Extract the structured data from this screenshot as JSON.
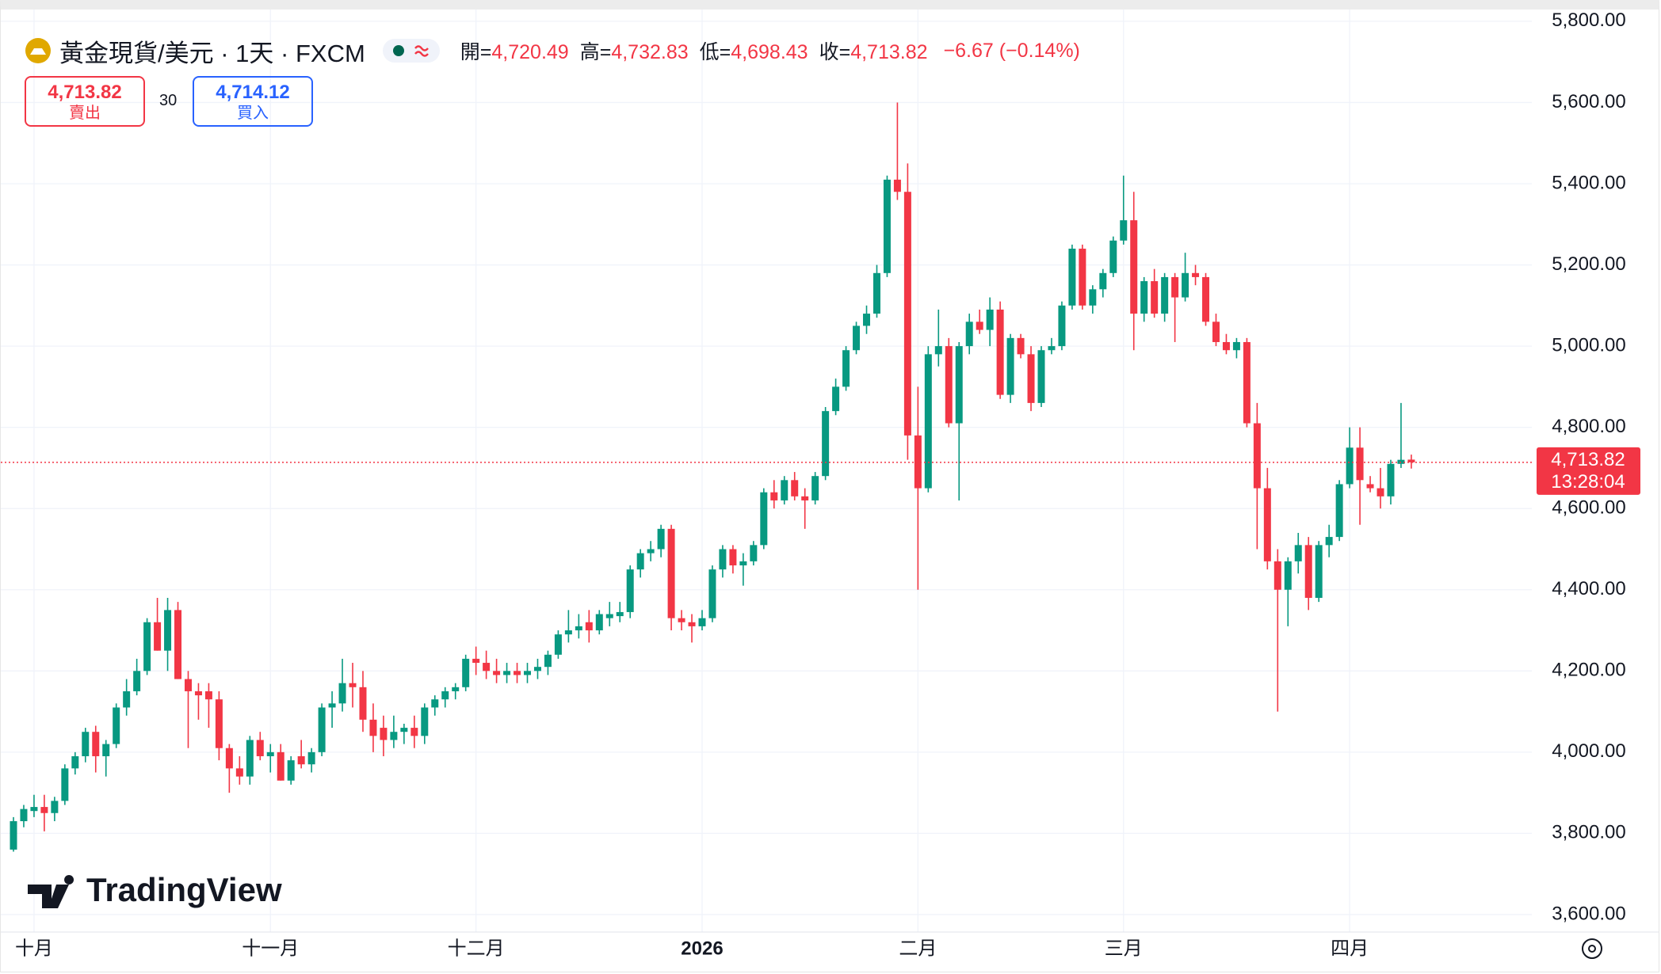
{
  "chart_data": {
    "type": "candlestick",
    "header": {
      "title": "黃金現貨/美元 · 1天 · FXCM",
      "ohlc": [
        {
          "label": "開=",
          "value": "4,720.49"
        },
        {
          "label": "高=",
          "value": "4,732.83"
        },
        {
          "label": "低=",
          "value": "4,698.43"
        },
        {
          "label": "收=",
          "value": "4,713.82"
        }
      ],
      "change": "−6.67 (−0.14%)"
    },
    "sell": {
      "price": "4,713.82",
      "label": "賣出"
    },
    "spread": "30",
    "buy": {
      "price": "4,714.12",
      "label": "買入"
    },
    "last_price": {
      "value": 4713.82,
      "label": "4,713.82"
    },
    "countdown": "13:28:04",
    "watermark": "TradingView",
    "up_color": "#089981",
    "down_color": "#f23645",
    "grid": true,
    "ylim": [
      3557,
      5831
    ],
    "yticks": [
      {
        "value": 3600,
        "label": "3,600.00"
      },
      {
        "value": 3800,
        "label": "3,800.00"
      },
      {
        "value": 4000,
        "label": "4,000.00"
      },
      {
        "value": 4200,
        "label": "4,200.00"
      },
      {
        "value": 4400,
        "label": "4,400.00"
      },
      {
        "value": 4600,
        "label": "4,600.00"
      },
      {
        "value": 4800,
        "label": "4,800.00"
      },
      {
        "value": 5000,
        "label": "5,000.00"
      },
      {
        "value": 5200,
        "label": "5,200.00"
      },
      {
        "value": 5400,
        "label": "5,400.00"
      },
      {
        "value": 5600,
        "label": "5,600.00"
      },
      {
        "value": 5800,
        "label": "5,800.00"
      }
    ],
    "categories": [
      null,
      null,
      "十月",
      null,
      null,
      null,
      null,
      null,
      null,
      null,
      null,
      null,
      null,
      null,
      null,
      null,
      null,
      null,
      null,
      null,
      null,
      null,
      null,
      null,
      null,
      "十一月",
      null,
      null,
      null,
      null,
      null,
      null,
      null,
      null,
      null,
      null,
      null,
      null,
      null,
      null,
      null,
      null,
      null,
      null,
      null,
      "十二月",
      null,
      null,
      null,
      null,
      null,
      null,
      null,
      null,
      null,
      null,
      null,
      null,
      null,
      null,
      null,
      null,
      null,
      null,
      null,
      null,
      null,
      "2026",
      null,
      null,
      null,
      null,
      null,
      null,
      null,
      null,
      null,
      null,
      null,
      null,
      null,
      null,
      null,
      null,
      null,
      null,
      null,
      null,
      "二月",
      null,
      null,
      null,
      null,
      null,
      null,
      null,
      null,
      null,
      null,
      null,
      null,
      null,
      null,
      null,
      null,
      null,
      null,
      null,
      "三月",
      null,
      null,
      null,
      null,
      null,
      null,
      null,
      null,
      null,
      null,
      null,
      null,
      null,
      null,
      null,
      null,
      null,
      null,
      null,
      null,
      null,
      "四月",
      null,
      null,
      null,
      null,
      null,
      null
    ],
    "open": [
      3760,
      3830,
      3855,
      3865,
      3850,
      3880,
      3960,
      3990,
      4050,
      3990,
      4020,
      4110,
      4150,
      4200,
      4320,
      4250,
      4350,
      4180,
      4150,
      4150,
      4130,
      4010,
      3960,
      3940,
      4030,
      3990,
      4000,
      3930,
      3990,
      3970,
      4000,
      4110,
      4120,
      4170,
      4160,
      4080,
      4060,
      4030,
      4050,
      4060,
      4040,
      4110,
      4130,
      4150,
      4160,
      4230,
      4220,
      4200,
      4190,
      4200,
      4190,
      4200,
      4210,
      4240,
      4290,
      4300,
      4320,
      4300,
      4330,
      4335,
      4345,
      4450,
      4490,
      4500,
      4550,
      4330,
      4320,
      4310,
      4330,
      4450,
      4500,
      4460,
      4470,
      4510,
      4640,
      4620,
      4670,
      4630,
      4620,
      4680,
      4840,
      4900,
      4990,
      5050,
      5080,
      5180,
      5410,
      5380,
      4780,
      4650,
      4980,
      5000,
      4810,
      5000,
      5060,
      5040,
      5090,
      4880,
      5020,
      4980,
      4860,
      4990,
      5000,
      5100,
      5240,
      5100,
      5140,
      5180,
      5260,
      5310,
      5080,
      5160,
      5080,
      5170,
      5120,
      5180,
      5170,
      5060,
      5010,
      4990,
      5010,
      4810,
      4650,
      4470,
      4400,
      4470,
      4510,
      4380,
      4510,
      4530,
      4660,
      4750,
      4660,
      4650,
      4630,
      4710,
      4720.49
    ],
    "high": [
      3840,
      3870,
      3895,
      3895,
      3890,
      3970,
      4000,
      4060,
      4065,
      4030,
      4120,
      4180,
      4230,
      4330,
      4380,
      4380,
      4370,
      4200,
      4170,
      4170,
      4150,
      4020,
      3990,
      4040,
      4050,
      4020,
      4020,
      3990,
      4030,
      4010,
      4120,
      4150,
      4230,
      4220,
      4200,
      4120,
      4090,
      4090,
      4070,
      4090,
      4120,
      4140,
      4160,
      4170,
      4240,
      4260,
      4250,
      4230,
      4220,
      4220,
      4220,
      4230,
      4250,
      4300,
      4350,
      4340,
      4350,
      4350,
      4370,
      4370,
      4460,
      4500,
      4520,
      4560,
      4560,
      4350,
      4340,
      4350,
      4460,
      4510,
      4510,
      4490,
      4520,
      4650,
      4670,
      4680,
      4690,
      4650,
      4690,
      4850,
      4920,
      5000,
      5060,
      5100,
      5200,
      5420,
      5600,
      5450,
      4900,
      5000,
      5090,
      5020,
      5010,
      5080,
      5090,
      5120,
      5110,
      5030,
      5030,
      5000,
      5000,
      5020,
      5110,
      5250,
      5250,
      5150,
      5190,
      5270,
      5420,
      5380,
      5170,
      5190,
      5180,
      5180,
      5230,
      5200,
      5180,
      5080,
      5030,
      5020,
      5020,
      4860,
      4700,
      4500,
      4480,
      4540,
      4530,
      4520,
      4560,
      4670,
      4800,
      4800,
      4680,
      4700,
      4720,
      4860,
      4732.83
    ],
    "low": [
      3755,
      3815,
      3840,
      3805,
      3830,
      3870,
      3945,
      3975,
      3950,
      3940,
      4010,
      4090,
      4140,
      4190,
      4250,
      4200,
      4180,
      4010,
      4080,
      4060,
      3980,
      3900,
      3920,
      3920,
      3980,
      3950,
      3930,
      3920,
      3960,
      3950,
      3990,
      4060,
      4100,
      4110,
      4050,
      4000,
      3990,
      4010,
      4020,
      4010,
      4020,
      4090,
      4110,
      4130,
      4150,
      4190,
      4180,
      4170,
      4170,
      4170,
      4170,
      4180,
      4190,
      4230,
      4270,
      4280,
      4270,
      4290,
      4310,
      4320,
      4330,
      4430,
      4470,
      4480,
      4300,
      4300,
      4270,
      4300,
      4320,
      4430,
      4440,
      4410,
      4460,
      4500,
      4600,
      4610,
      4620,
      4550,
      4610,
      4670,
      4830,
      4890,
      4980,
      5030,
      5070,
      5170,
      5360,
      4720,
      4400,
      4640,
      4950,
      4800,
      4620,
      4980,
      5030,
      5000,
      4870,
      4860,
      4970,
      4840,
      4850,
      4980,
      4990,
      5090,
      5090,
      5080,
      5120,
      5170,
      5250,
      4990,
      5060,
      5070,
      5060,
      5010,
      5110,
      5150,
      5050,
      5000,
      4980,
      4970,
      4800,
      4500,
      4450,
      4100,
      4310,
      4440,
      4350,
      4370,
      4480,
      4520,
      4650,
      4560,
      4640,
      4600,
      4610,
      4700,
      4698.43
    ],
    "close": [
      3830,
      3860,
      3865,
      3850,
      3880,
      3960,
      3990,
      4050,
      3990,
      4020,
      4110,
      4150,
      4200,
      4320,
      4250,
      4350,
      4180,
      4150,
      4140,
      4130,
      4010,
      3960,
      3940,
      4030,
      3990,
      4000,
      3930,
      3980,
      3970,
      4000,
      4110,
      4120,
      4170,
      4160,
      4080,
      4040,
      4030,
      4050,
      4060,
      4040,
      4110,
      4130,
      4150,
      4160,
      4230,
      4220,
      4200,
      4190,
      4200,
      4190,
      4200,
      4210,
      4240,
      4290,
      4300,
      4310,
      4300,
      4340,
      4340,
      4345,
      4450,
      4490,
      4500,
      4550,
      4330,
      4320,
      4310,
      4330,
      4450,
      4500,
      4460,
      4470,
      4510,
      4640,
      4620,
      4670,
      4630,
      4620,
      4680,
      4840,
      4900,
      4990,
      5050,
      5080,
      5180,
      5410,
      5380,
      4780,
      4650,
      4980,
      5000,
      4810,
      5000,
      5060,
      5040,
      5090,
      4880,
      5020,
      4980,
      4860,
      4990,
      5000,
      5100,
      5240,
      5100,
      5140,
      5180,
      5260,
      5310,
      5080,
      5160,
      5080,
      5170,
      5120,
      5180,
      5170,
      5060,
      5010,
      4990,
      5010,
      4810,
      4650,
      4470,
      4400,
      4470,
      4510,
      4380,
      4510,
      4530,
      4660,
      4750,
      4670,
      4650,
      4630,
      4710,
      4720,
      4713.82
    ]
  }
}
